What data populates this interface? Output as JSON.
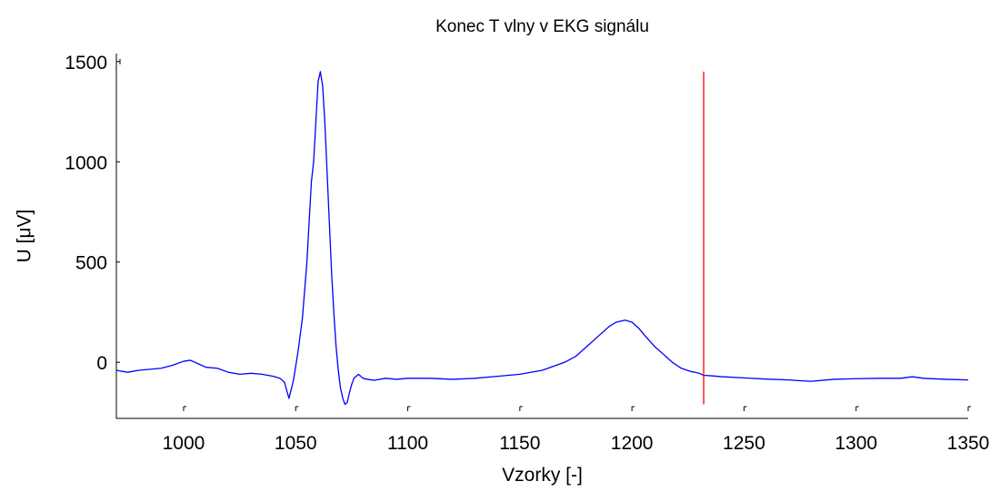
{
  "chart_data": {
    "type": "line",
    "title": "Konec T vlny v EKG signálu",
    "xlabel": "Vzorky [-]",
    "ylabel": "U [μV]",
    "xlim": [
      970,
      1350
    ],
    "ylim": [
      -280,
      1540
    ],
    "xticks": [
      1000,
      1050,
      1100,
      1150,
      1200,
      1250,
      1300,
      1350
    ],
    "yticks": [
      0,
      500,
      1000,
      1500
    ],
    "grid": false,
    "series": [
      {
        "color": "#0000ff",
        "x": [
          970,
          975,
          980,
          985,
          990,
          995,
          1000,
          1003,
          1006,
          1010,
          1015,
          1020,
          1025,
          1030,
          1035,
          1040,
          1043,
          1045,
          1047,
          1049,
          1051,
          1053,
          1055,
          1056,
          1057,
          1058,
          1059,
          1060,
          1061,
          1062,
          1063,
          1064,
          1065,
          1066,
          1067,
          1068,
          1069,
          1070,
          1071,
          1072,
          1073,
          1074,
          1075,
          1076,
          1078,
          1080,
          1082,
          1085,
          1090,
          1095,
          1100,
          1110,
          1120,
          1130,
          1140,
          1150,
          1160,
          1170,
          1175,
          1180,
          1185,
          1190,
          1193,
          1197,
          1200,
          1203,
          1206,
          1210,
          1214,
          1218,
          1222,
          1226,
          1230,
          1232,
          1236,
          1240,
          1250,
          1260,
          1270,
          1275,
          1280,
          1290,
          1300,
          1310,
          1320,
          1325,
          1330,
          1340,
          1350
        ],
        "y": [
          -40,
          -50,
          -40,
          -35,
          -30,
          -15,
          5,
          10,
          -5,
          -25,
          -30,
          -50,
          -60,
          -55,
          -60,
          -70,
          -80,
          -100,
          -180,
          -90,
          50,
          220,
          500,
          700,
          900,
          1000,
          1200,
          1400,
          1450,
          1380,
          1200,
          950,
          700,
          450,
          250,
          80,
          -40,
          -130,
          -180,
          -210,
          -200,
          -150,
          -110,
          -80,
          -60,
          -80,
          -85,
          -90,
          -80,
          -85,
          -80,
          -80,
          -85,
          -80,
          -70,
          -60,
          -40,
          0,
          30,
          80,
          130,
          180,
          200,
          210,
          200,
          170,
          130,
          80,
          40,
          0,
          -30,
          -45,
          -55,
          -65,
          -68,
          -72,
          -78,
          -84,
          -88,
          -92,
          -95,
          -85,
          -82,
          -80,
          -80,
          -72,
          -80,
          -85,
          -88
        ]
      },
      {
        "color": "#ff0000",
        "x": [
          1232,
          1232
        ],
        "y": [
          -210,
          1450
        ]
      }
    ]
  }
}
